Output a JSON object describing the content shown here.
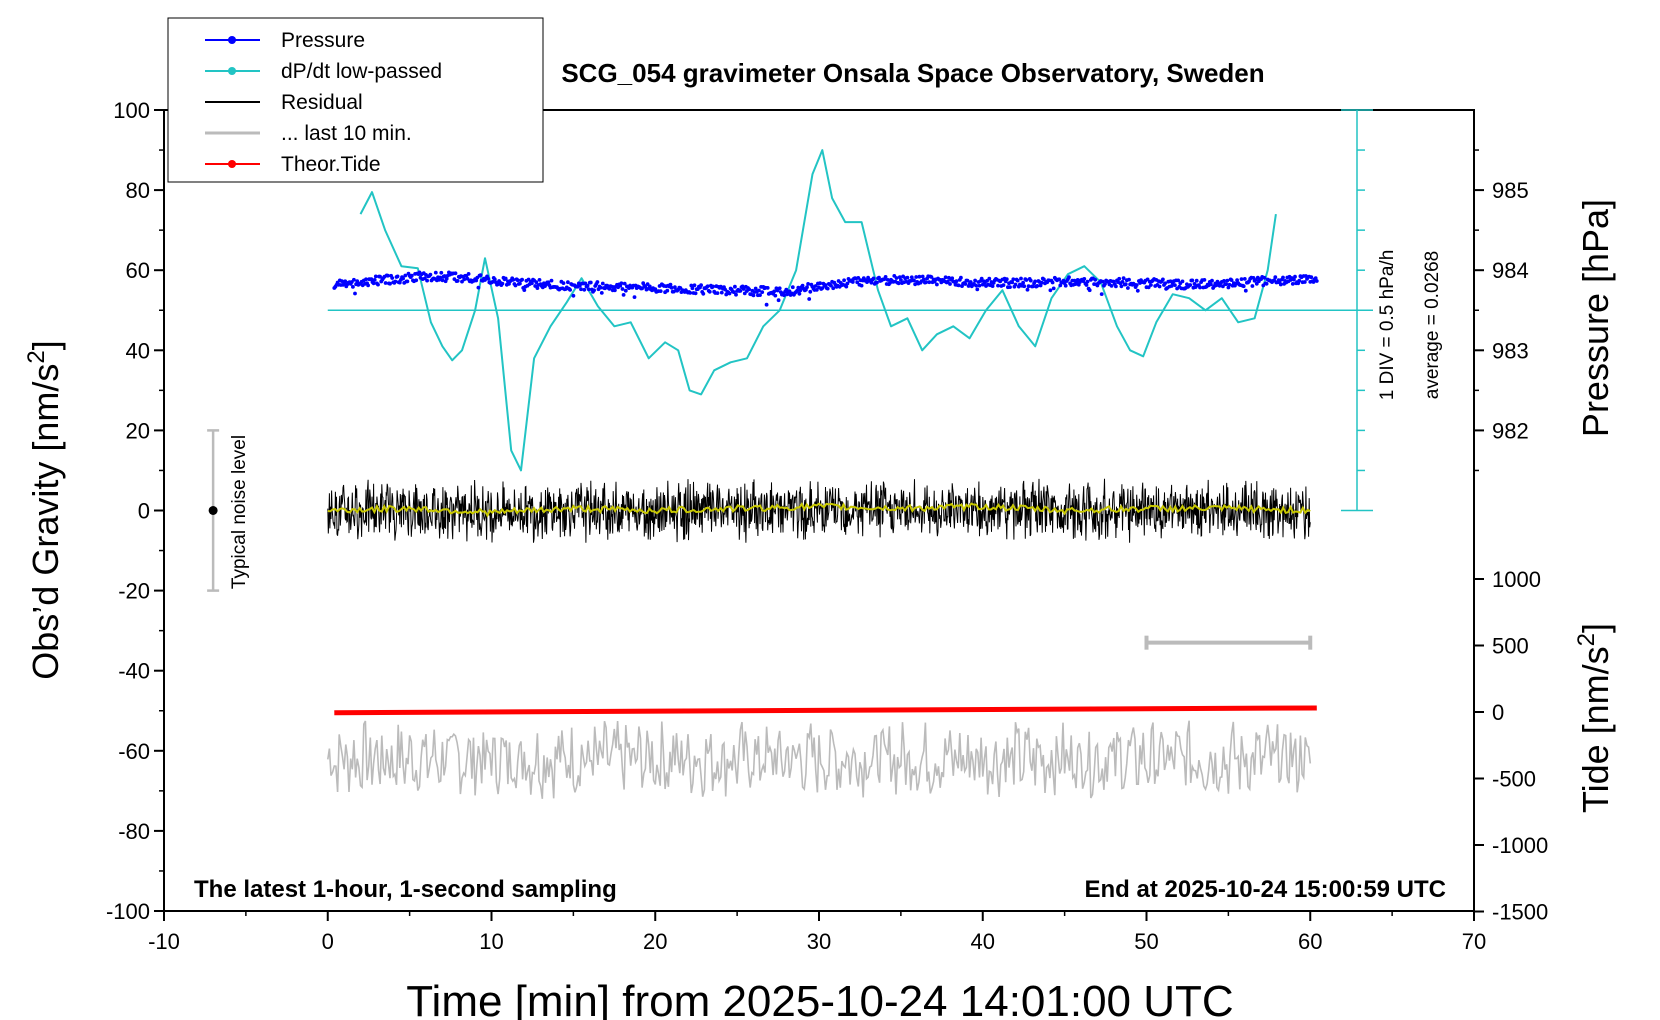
{
  "chart_data": {
    "type": "line",
    "title": "SCG_054 gravimeter Onsala Space Observatory, Sweden",
    "xlabel": "Time [min] from 2025-10-24 14:01:00 UTC",
    "ylabel_left": "Obs’d Gravity [nm/s",
    "ylabel_left_sup": "2",
    "ylabel_left_end": "]",
    "ylabel_right_pressure": "Pressure [hPa]",
    "ylabel_right_tide": "Tide [nm/s",
    "ylabel_right_tide_sup": "2",
    "ylabel_right_tide_end": "]",
    "xlim": [
      -10,
      70
    ],
    "ylim": [
      -100,
      100
    ],
    "x_ticks": [
      "-10",
      "0",
      "10",
      "20",
      "30",
      "40",
      "50",
      "60",
      "70"
    ],
    "y_ticks": [
      "100",
      "80",
      "60",
      "40",
      "20",
      "0",
      "-20",
      "-40",
      "-60",
      "-80",
      "-100"
    ],
    "pressure_ticks": [
      "985",
      "984",
      "983",
      "982"
    ],
    "pressure_values": [
      985,
      984,
      983,
      982
    ],
    "tide_ticks": [
      "1000",
      "500",
      "0",
      "-500",
      "-1000",
      "-1500"
    ],
    "tide_values": [
      1000,
      500,
      0,
      -500,
      -1000,
      -1500
    ],
    "bottom_left_note": "The latest 1-hour, 1-second sampling",
    "bottom_right_note": "End at 2025-10-24 15:00:59 UTC",
    "dpdt_scale_label": "1 DIV = 0.5 hPa/h",
    "dpdt_average_label": "average = 0.0268",
    "noise_label": "Typical noise level",
    "noise_bar": {
      "x": -7,
      "y": 0,
      "low": -20,
      "high": 20
    },
    "legend": [
      {
        "name": "Pressure",
        "color": "#0000ff",
        "marker": true
      },
      {
        "name": "dP/dt low-passed",
        "color": "#22c4c4",
        "marker": true
      },
      {
        "name": "Residual",
        "color": "#000000",
        "marker": false
      },
      {
        "name": "... last 10 min.",
        "color": "#bbbbbb",
        "marker": false
      },
      {
        "name": "Theor.Tide",
        "color": "#ff0000",
        "marker": true
      }
    ],
    "series": [
      {
        "name": "Pressure",
        "color": "#0000ff",
        "x": [
          0.4,
          2,
          4,
          6,
          8,
          10,
          12,
          14,
          16,
          18,
          20,
          22,
          24,
          26,
          28,
          30,
          32,
          34,
          36,
          38,
          40,
          42,
          44,
          46,
          48,
          50,
          52,
          54,
          56,
          58,
          60.4
        ],
        "y": [
          56.5,
          57,
          57.8,
          58.5,
          58.3,
          57.5,
          56.8,
          56.2,
          56,
          55.8,
          55.6,
          55.3,
          55.0,
          54.8,
          54.6,
          56,
          57,
          57.6,
          57.5,
          57.2,
          57,
          56.8,
          57,
          57.3,
          57,
          56.8,
          56.5,
          56.5,
          57,
          57.5,
          57.5
        ]
      },
      {
        "name": "dP/dt low-passed",
        "color": "#22c4c4",
        "x": [
          2,
          2.7,
          3.5,
          4.5,
          5.5,
          6.3,
          7,
          7.6,
          8.2,
          9,
          9.6,
          10.4,
          11.2,
          11.8,
          12.6,
          13.6,
          14.6,
          15.5,
          16.5,
          17.5,
          18.5,
          19.6,
          20.6,
          21.4,
          22.1,
          22.8,
          23.6,
          24.6,
          25.6,
          26.6,
          27.6,
          28.6,
          29.6,
          30.2,
          30.8,
          31.6,
          32.6,
          33.6,
          34.4,
          35.4,
          36.3,
          37.2,
          38.2,
          39.2,
          40.2,
          41.2,
          42.2,
          43.2,
          44.2,
          45.2,
          46.2,
          47.2,
          48.2,
          49,
          49.8,
          50.6,
          51.6,
          52.6,
          53.6,
          54.6,
          55.6,
          56.6,
          57.4,
          57.9
        ],
        "y": [
          74,
          79.5,
          70,
          61,
          60.5,
          47,
          41,
          37.5,
          40,
          50,
          63,
          48,
          15,
          10,
          38,
          46,
          52,
          58,
          51,
          46,
          47,
          38,
          42,
          40,
          30,
          29,
          35,
          37,
          38,
          46,
          50,
          60,
          84,
          90,
          78,
          72,
          72,
          55,
          46,
          48,
          40,
          44,
          46,
          43,
          50,
          55,
          46,
          41,
          53,
          59,
          61,
          57,
          46,
          40,
          38.5,
          47,
          54,
          53,
          50,
          53,
          47,
          48,
          60,
          74
        ]
      },
      {
        "name": "Residual",
        "color": "#000000",
        "x": [
          0,
          60
        ],
        "y": [
          0,
          0
        ],
        "amplitude": 7
      },
      {
        "name": "Residual smoothed",
        "color": "#c8c800",
        "x": [
          0,
          5,
          10,
          15,
          20,
          25,
          30,
          35,
          40,
          45,
          50,
          55,
          60
        ],
        "y": [
          0,
          0.5,
          -0.5,
          0.5,
          0,
          0.5,
          1,
          0.5,
          1,
          0,
          0.5,
          0.5,
          0
        ]
      },
      {
        "name": "... last 10 min.",
        "color": "#bbbbbb",
        "x": [
          0,
          60
        ],
        "y": [
          -62,
          -62
        ],
        "amplitude": 8
      },
      {
        "name": "Theor.Tide",
        "color": "#ff0000",
        "x": [
          0.4,
          60.4
        ],
        "y": [
          -50.5,
          -49.3
        ]
      },
      {
        "name": "scale bar",
        "color": "#bbbbbb",
        "x": [
          50,
          60
        ],
        "y": [
          -33,
          -33
        ]
      }
    ]
  }
}
